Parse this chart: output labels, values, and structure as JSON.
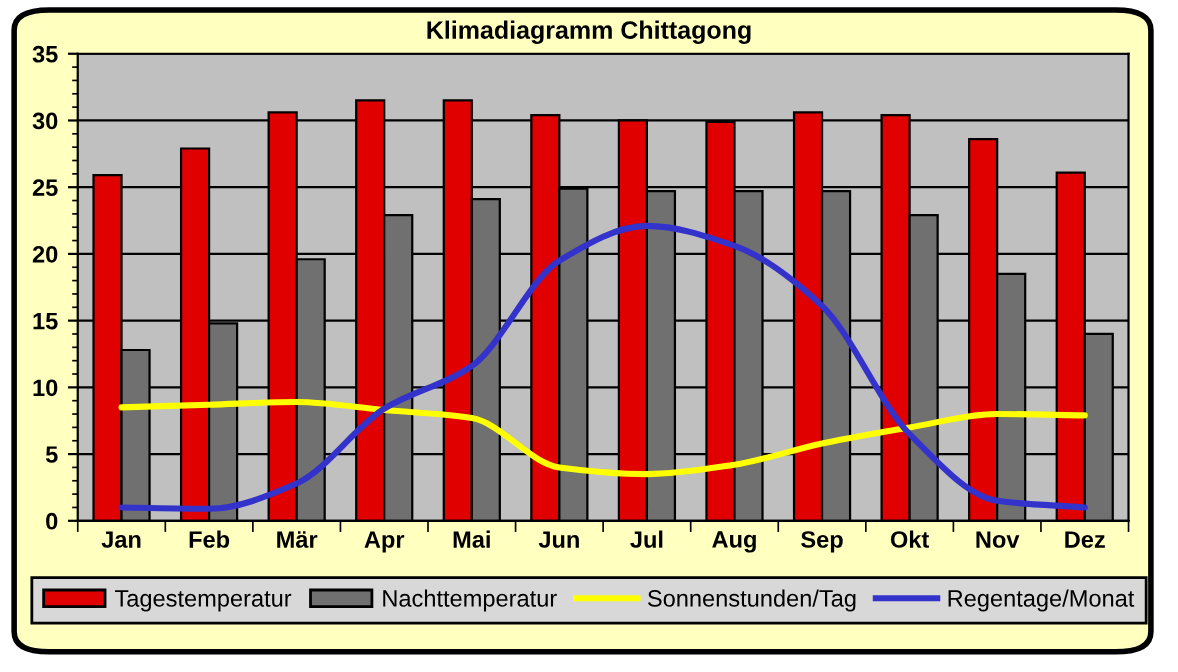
{
  "chart_data": {
    "type": "bar",
    "title": "Klimadiagramm Chittagong",
    "categories": [
      "Jan",
      "Feb",
      "Mär",
      "Apr",
      "Mai",
      "Jun",
      "Jul",
      "Aug",
      "Sep",
      "Okt",
      "Nov",
      "Dez"
    ],
    "series": [
      {
        "name": "Tagestemperatur",
        "color": "#e00000",
        "values": [
          25.9,
          27.9,
          30.6,
          31.5,
          31.5,
          30.4,
          30.0,
          29.9,
          30.6,
          30.4,
          28.6,
          26.1
        ]
      },
      {
        "name": "Nachttemperatur",
        "color": "#707070",
        "values": [
          12.8,
          14.8,
          19.6,
          22.9,
          24.1,
          24.9,
          24.7,
          24.7,
          24.7,
          22.9,
          18.5,
          14.0
        ]
      },
      {
        "name": "Sonnenstunden/Tag",
        "type": "line",
        "color": "#ffff00",
        "values": [
          8.5,
          8.7,
          8.9,
          8.3,
          7.7,
          4.0,
          3.5,
          4.2,
          5.8,
          7.0,
          8.0,
          7.9
        ]
      },
      {
        "name": "Regentage/Monat",
        "type": "line",
        "color": "#3333cc",
        "values": [
          1.0,
          0.9,
          2.8,
          8.4,
          11.6,
          19.5,
          22.1,
          20.6,
          16.1,
          6.5,
          1.5,
          1.0
        ]
      }
    ],
    "ylim": [
      0,
      35
    ],
    "yticks": [
      0,
      5,
      10,
      15,
      20,
      25,
      30,
      35
    ],
    "grid": "y",
    "legend": "bottom"
  }
}
